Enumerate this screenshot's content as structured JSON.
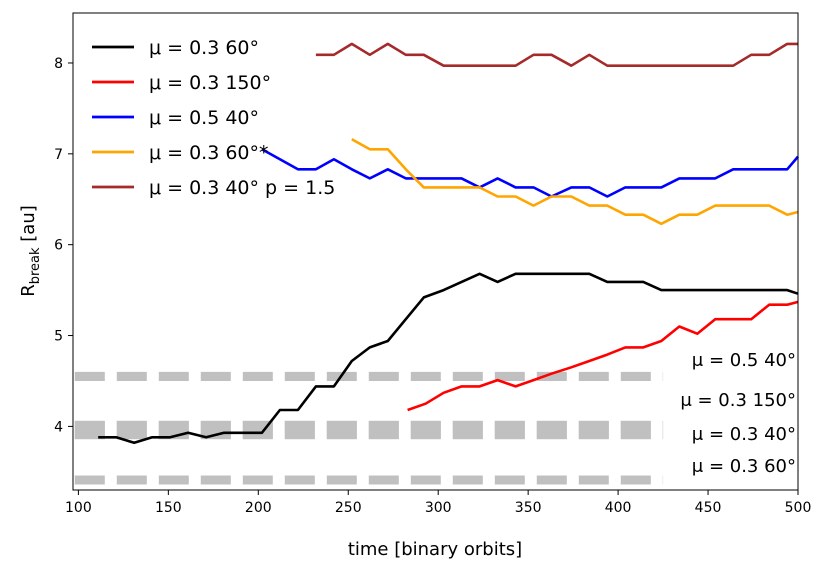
{
  "chart_data": {
    "type": "line",
    "title": "",
    "xlabel": "time [binary orbits]",
    "ylabel_main": "R",
    "ylabel_sub": "break",
    "ylabel_unit": " [au]",
    "xlim": [
      97,
      500
    ],
    "ylim": [
      3.3,
      8.55
    ],
    "xticks": [
      100,
      150,
      200,
      250,
      300,
      350,
      400,
      450,
      500
    ],
    "yticks": [
      4,
      5,
      6,
      7,
      8
    ],
    "grid": false,
    "legend_position": "upper-left",
    "series": [
      {
        "name": "μ = 0.3 60°",
        "color": "#000000",
        "x": [
          111,
          121,
          131,
          141,
          151,
          161,
          171,
          181,
          191,
          202,
          212,
          222,
          232,
          242,
          252,
          262,
          272,
          282,
          292,
          303,
          313,
          323,
          333,
          343,
          353,
          363,
          374,
          384,
          394,
          404,
          414,
          424,
          434,
          444,
          454,
          464,
          474,
          484,
          494,
          500
        ],
        "y": [
          3.88,
          3.88,
          3.82,
          3.88,
          3.88,
          3.93,
          3.88,
          3.93,
          3.93,
          3.93,
          4.18,
          4.18,
          4.44,
          4.44,
          4.72,
          4.87,
          4.94,
          5.18,
          5.42,
          5.5,
          5.59,
          5.68,
          5.59,
          5.68,
          5.68,
          5.68,
          5.68,
          5.68,
          5.59,
          5.59,
          5.59,
          5.5,
          5.5,
          5.5,
          5.5,
          5.5,
          5.5,
          5.5,
          5.5,
          5.46
        ]
      },
      {
        "name": "μ = 0.3 150°",
        "color": "#ff0000",
        "x": [
          283,
          293,
          303,
          313,
          323,
          333,
          343,
          353,
          363,
          374,
          384,
          394,
          404,
          414,
          424,
          434,
          444,
          454,
          464,
          474,
          484,
          494,
          500
        ],
        "y": [
          4.18,
          4.25,
          4.37,
          4.44,
          4.44,
          4.51,
          4.44,
          4.51,
          4.58,
          4.65,
          4.72,
          4.79,
          4.87,
          4.87,
          4.94,
          5.1,
          5.02,
          5.18,
          5.18,
          5.18,
          5.34,
          5.34,
          5.37
        ]
      },
      {
        "name": "μ = 0.5 40°",
        "color": "#0000ff",
        "x": [
          202,
          212,
          222,
          232,
          242,
          252,
          262,
          272,
          282,
          292,
          303,
          313,
          323,
          333,
          343,
          353,
          363,
          374,
          384,
          394,
          404,
          414,
          424,
          434,
          444,
          454,
          464,
          474,
          484,
          494,
          500
        ],
        "y": [
          7.05,
          6.94,
          6.83,
          6.83,
          6.94,
          6.83,
          6.73,
          6.83,
          6.73,
          6.73,
          6.73,
          6.73,
          6.63,
          6.73,
          6.63,
          6.63,
          6.53,
          6.63,
          6.63,
          6.53,
          6.63,
          6.63,
          6.63,
          6.73,
          6.73,
          6.73,
          6.83,
          6.83,
          6.83,
          6.83,
          6.97
        ]
      },
      {
        "name": "μ = 0.3 60°*",
        "color": "#ffa500",
        "x": [
          252,
          262,
          272,
          282,
          292,
          303,
          313,
          323,
          333,
          343,
          353,
          363,
          374,
          384,
          394,
          404,
          414,
          424,
          434,
          444,
          454,
          464,
          474,
          484,
          494,
          500
        ],
        "y": [
          7.16,
          7.05,
          7.05,
          6.83,
          6.63,
          6.63,
          6.63,
          6.63,
          6.53,
          6.53,
          6.43,
          6.53,
          6.53,
          6.43,
          6.43,
          6.33,
          6.33,
          6.23,
          6.33,
          6.33,
          6.43,
          6.43,
          6.43,
          6.43,
          6.33,
          6.36
        ]
      },
      {
        "name": "μ = 0.3 40° p = 1.5",
        "color": "#a52a2a",
        "x": [
          232,
          242,
          252,
          262,
          272,
          282,
          292,
          303,
          313,
          323,
          333,
          343,
          353,
          363,
          374,
          384,
          394,
          404,
          414,
          424,
          434,
          444,
          454,
          464,
          474,
          484,
          494,
          500
        ],
        "y": [
          8.09,
          8.09,
          8.21,
          8.09,
          8.21,
          8.09,
          8.09,
          7.97,
          7.97,
          7.97,
          7.97,
          7.97,
          8.09,
          8.09,
          7.97,
          8.09,
          7.97,
          7.97,
          7.97,
          7.97,
          7.97,
          7.97,
          7.97,
          7.97,
          8.09,
          8.09,
          8.21,
          8.21
        ]
      }
    ],
    "reference_bands": [
      {
        "label": "μ = 0.5  40°",
        "y": 4.55,
        "thickness": 0.1,
        "color": "#c0c0c0"
      },
      {
        "label": "μ = 0.3 150°",
        "y": 3.96,
        "thickness": 0.2,
        "color": "#c0c0c0"
      },
      {
        "label": "μ = 0.3  40°",
        "y": 3.96,
        "thickness": 0.2,
        "color": "#c0c0c0"
      },
      {
        "label": "μ = 0.3  60°",
        "y": 3.41,
        "thickness": 0.1,
        "color": "#c0c0c0"
      }
    ]
  }
}
